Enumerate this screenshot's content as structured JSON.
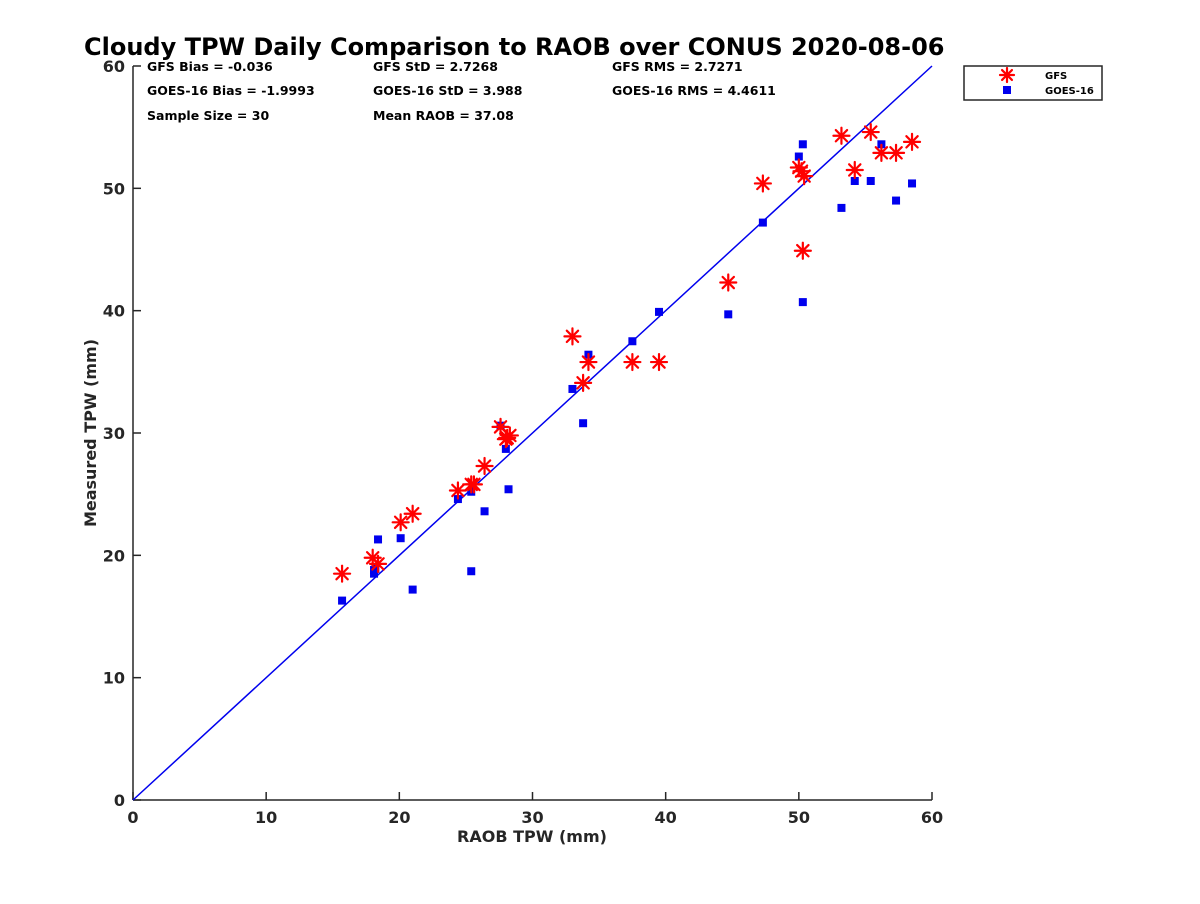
{
  "chart_data": {
    "type": "scatter",
    "title": "Cloudy TPW Daily Comparison to RAOB over CONUS 2020-08-06",
    "xlabel": "RAOB TPW (mm)",
    "ylabel": "Measured TPW (mm)",
    "xlim": [
      0,
      60
    ],
    "ylim": [
      0,
      60
    ],
    "xticks": [
      "0",
      "10",
      "20",
      "30",
      "40",
      "50",
      "60"
    ],
    "yticks": [
      "0",
      "10",
      "20",
      "30",
      "40",
      "50",
      "60"
    ],
    "grid": false,
    "legend_position": "top-right, outside plot",
    "reference_line": {
      "from": [
        0,
        0
      ],
      "to": [
        60,
        60
      ],
      "color": "#0000ee"
    },
    "stats": {
      "gfs_bias": "GFS Bias = -0.036",
      "gfs_std": "GFS StD = 2.7268",
      "gfs_rms": "GFS RMS = 2.7271",
      "goes_bias": "GOES-16 Bias = -1.9993",
      "goes_std": "GOES-16 StD = 3.988",
      "goes_rms": "GOES-16 RMS = 4.4611",
      "sample_size": "Sample Size = 30",
      "mean_raob": "Mean RAOB = 37.08"
    },
    "series": [
      {
        "name": "GFS",
        "marker": "asterisk",
        "color": "#ff0000",
        "points": [
          [
            15.7,
            18.5
          ],
          [
            18.0,
            19.8
          ],
          [
            18.4,
            19.3
          ],
          [
            20.1,
            22.7
          ],
          [
            21.0,
            23.4
          ],
          [
            24.4,
            25.3
          ],
          [
            25.4,
            25.8
          ],
          [
            25.6,
            25.8
          ],
          [
            26.4,
            27.3
          ],
          [
            27.6,
            30.5
          ],
          [
            28.1,
            29.6
          ],
          [
            28.3,
            29.8
          ],
          [
            33.0,
            37.9
          ],
          [
            33.8,
            34.1
          ],
          [
            34.2,
            35.8
          ],
          [
            37.5,
            35.8
          ],
          [
            39.5,
            35.8
          ],
          [
            44.7,
            42.3
          ],
          [
            47.3,
            50.4
          ],
          [
            50.0,
            51.7
          ],
          [
            50.4,
            51.0
          ],
          [
            50.3,
            44.9
          ],
          [
            53.2,
            54.3
          ],
          [
            54.2,
            51.5
          ],
          [
            55.4,
            54.6
          ],
          [
            56.2,
            52.9
          ],
          [
            57.3,
            52.9
          ],
          [
            58.5,
            53.8
          ],
          [
            28.0,
            29.5
          ],
          [
            50.2,
            51.4
          ]
        ]
      },
      {
        "name": "GOES-16",
        "marker": "square",
        "color": "#0000ee",
        "points": [
          [
            15.7,
            16.3
          ],
          [
            18.1,
            18.8
          ],
          [
            18.1,
            18.5
          ],
          [
            18.4,
            21.3
          ],
          [
            20.1,
            21.4
          ],
          [
            21.0,
            17.2
          ],
          [
            24.4,
            24.6
          ],
          [
            25.4,
            25.2
          ],
          [
            25.4,
            18.7
          ],
          [
            26.4,
            23.6
          ],
          [
            27.6,
            30.6
          ],
          [
            28.0,
            28.7
          ],
          [
            28.2,
            25.4
          ],
          [
            33.0,
            33.6
          ],
          [
            33.8,
            30.8
          ],
          [
            34.2,
            36.4
          ],
          [
            37.5,
            37.5
          ],
          [
            39.5,
            39.9
          ],
          [
            44.7,
            39.7
          ],
          [
            47.3,
            47.2
          ],
          [
            50.0,
            52.6
          ],
          [
            50.3,
            53.6
          ],
          [
            50.3,
            40.7
          ],
          [
            53.2,
            48.4
          ],
          [
            54.2,
            50.6
          ],
          [
            55.4,
            50.6
          ],
          [
            56.2,
            53.6
          ],
          [
            57.3,
            49.0
          ],
          [
            58.5,
            50.4
          ],
          [
            18.2,
            18.9
          ]
        ]
      }
    ]
  }
}
